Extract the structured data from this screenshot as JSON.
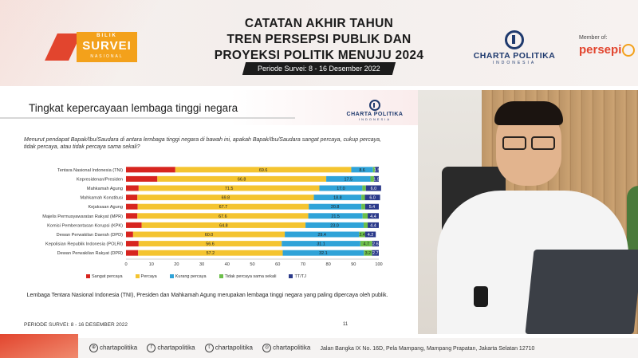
{
  "header": {
    "logo_top": "BILIK",
    "logo_main": "SURVEI",
    "logo_sub": "NASIONAL",
    "title_line1": "CATATAN AKHIR TAHUN",
    "title_line2": "TREN PERSEPSI PUBLIK DAN",
    "title_line3": "PROYEKSI POLITIK MENUJU 2024",
    "period": "Periode Survei: 8 - 16 Desember 2022",
    "cp_name": "CHARTA POLITIKA",
    "cp_sub": "INDONESIA",
    "member_label": "Member of:",
    "persepi": "persepi"
  },
  "slide": {
    "title": "Tingkat kepercayaan lembaga tinggi negara",
    "logo_name": "CHARTA POLITIKA",
    "logo_sub": "INDONESIA",
    "question": "Menurut pendapat Bapak/Ibu/Saudara di antara lembaga tinggi negara di bawah ini, apakah Bapak/Ibu/Saudara sangat percaya, cukup percaya, tidak percaya, atau tidak percaya sama sekali?",
    "conclusion": "Lembaga Tentara Nasional Indonesia (TNI), Presiden dan Mahkamah Agung merupakan lembaga tinggi negara yang paling dipercaya oleh publik.",
    "footer_period": "PERIODE SURVEI: 8 - 16 DESEMBER 2022",
    "page_number": "11"
  },
  "chart_data": {
    "type": "bar",
    "orientation": "horizontal",
    "stacked": true,
    "categories": [
      "Tentara Nasional Indonesia (TNI)",
      "Kepresidenan/Presiden",
      "Mahkamah Agung",
      "Mahkamah Konstitusi",
      "Kejaksaan Agung",
      "Majelis Permusyawaratan Rakyat (MPR)",
      "Komisi Pemberantasan Korupsi (KPK)",
      "Dewan Perwakilan Daerah (DPD)",
      "Kepolisian Republik Indonesia (POLRI)",
      "Dewan Perwakilan Rakyat (DPR)"
    ],
    "series": [
      {
        "name": "Sangat percaya",
        "color": "#d7251f",
        "values": [
          19.5,
          12.4,
          5.0,
          4.5,
          4.6,
          4.5,
          6.2,
          2.8,
          5.0,
          4.8
        ],
        "labels": [
          "",
          "",
          "",
          "",
          "",
          "",
          "",
          "",
          "",
          ""
        ]
      },
      {
        "name": "Percaya",
        "color": "#f4c430",
        "values": [
          69.6,
          66.8,
          71.5,
          69.8,
          67.7,
          67.6,
          64.8,
          60.0,
          56.6,
          57.2
        ],
        "labels": [
          "69.6",
          "66.8",
          "71.5",
          "69.8",
          "67.7",
          "67.6",
          "64.8",
          "60.0",
          "56.6",
          "57.2"
        ]
      },
      {
        "name": "Kurang percaya",
        "color": "#2fa3d8",
        "values": [
          8.6,
          17.5,
          17.0,
          18.8,
          20.8,
          21.5,
          23.0,
          29.4,
          31.1,
          32.1
        ],
        "labels": [
          "8.6",
          "17.5",
          "17.0",
          "18.8",
          "20.8",
          "21.5",
          "23.0",
          "29.4",
          "31.1",
          "32.1"
        ]
      },
      {
        "name": "Tidak percaya sama sekali",
        "color": "#6cbf4a",
        "values": [
          0.8,
          1.4,
          1.4,
          1.4,
          1.5,
          2.0,
          1.6,
          2.4,
          4.7,
          3.2
        ],
        "labels": [
          "",
          "",
          "",
          "",
          "",
          "",
          "",
          "2.4",
          "4.7",
          "3.2"
        ]
      },
      {
        "name": "TT/TJ",
        "color": "#2b3a8a",
        "values": [
          1.5,
          1.9,
          6.0,
          6.0,
          5.4,
          4.4,
          4.4,
          4.2,
          2.6,
          2.7
        ],
        "labels": [
          "1.5",
          "1.9",
          "6.0",
          "6.0",
          "5.4",
          "4.4",
          "4.4",
          "4.2",
          "2.6",
          "2.7"
        ]
      }
    ],
    "xlim": [
      0,
      100
    ],
    "xticks": [
      "0",
      "10",
      "20",
      "30",
      "40",
      "50",
      "60",
      "70",
      "80",
      "90",
      "100"
    ],
    "legend_position": "bottom"
  },
  "footer": {
    "web": "chartapolitika",
    "facebook": "chartapolitika",
    "twitter": "chartapolitika",
    "instagram": "chartapolitika",
    "address": "Jalan Bangka IX No. 16D, Pela Mampang, Mampang Prapatan, Jakarta Selatan 12710"
  }
}
